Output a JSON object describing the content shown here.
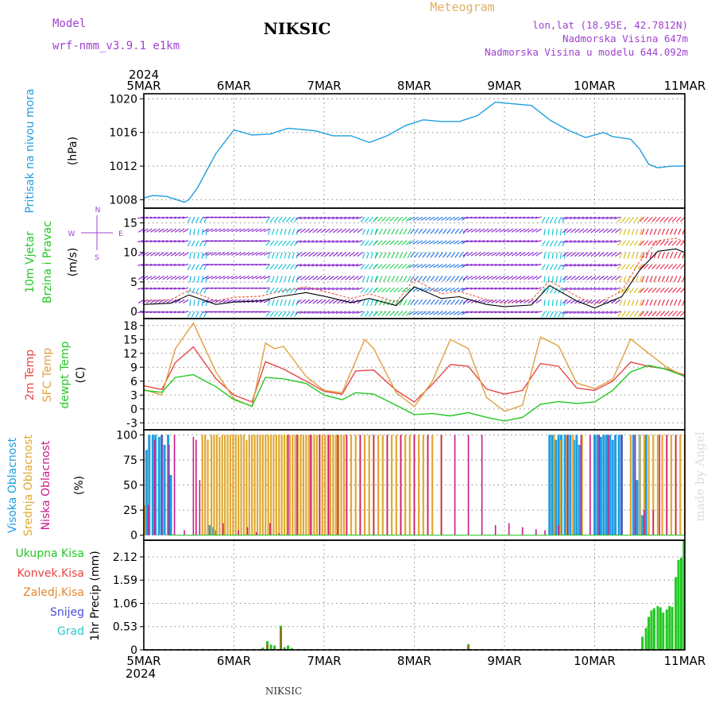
{
  "header": {
    "model_label": "Model",
    "model_name": "wrf-nmm_v3.9.1 e1km",
    "station_title": "NIKSIC",
    "meteogram_label": "Meteogram",
    "coords": "lon,lat (18.95E, 42.7812N)",
    "elevation": "Nadmorska Visina 647m",
    "model_elevation": "Nadmorska Visina u modelu 644.092m",
    "footer_station": "NIKSIC",
    "watermark": "made by Angel"
  },
  "colors": {
    "pressure": "#1f9de0",
    "temp2m": "#e84545",
    "sfc_temp": "#e0a040",
    "dewpt": "#22c822",
    "high_cloud": "#1f9de0",
    "mid_cloud": "#e0a830",
    "low_cloud": "#cc1a88",
    "total_precip": "#22c822",
    "conv_precip": "#e84545",
    "frozen_precip": "#e08830",
    "snow": "#4a4ad8",
    "graupel": "#2ac8c8",
    "header_purple": "#a040d0",
    "header_gold": "#e0b060"
  },
  "chart_data": {
    "type": "meteogram",
    "time_axis": {
      "year": "2024",
      "ticks": [
        "5MAR",
        "6MAR",
        "7MAR",
        "8MAR",
        "9MAR",
        "10MAR",
        "11MAR"
      ],
      "range_days": [
        0,
        6
      ]
    },
    "panels": [
      {
        "id": "pressure",
        "type": "line",
        "title": "Pritisak na nivou mora",
        "ylabel": "(hPa)",
        "ylim": [
          1007,
          1020.6
        ],
        "yticks": [
          1008,
          1012,
          1016,
          1020
        ],
        "series": [
          {
            "name": "Pritisak na nivou mora",
            "x": [
              0,
              0.1,
              0.25,
              0.45,
              0.5,
              0.6,
              0.8,
              1.0,
              1.2,
              1.4,
              1.6,
              1.9,
              2.1,
              2.3,
              2.5,
              2.7,
              2.9,
              3.1,
              3.3,
              3.5,
              3.7,
              3.9,
              4.1,
              4.3,
              4.5,
              4.7,
              4.9,
              5.1,
              5.2,
              5.4,
              5.5,
              5.6,
              5.7,
              5.85,
              6.0
            ],
            "y": [
              1008.2,
              1008.5,
              1008.4,
              1007.7,
              1008.0,
              1009.5,
              1013.5,
              1016.3,
              1015.7,
              1015.8,
              1016.5,
              1016.2,
              1015.6,
              1015.6,
              1014.8,
              1015.6,
              1016.8,
              1017.5,
              1017.3,
              1017.3,
              1018.0,
              1019.6,
              1019.4,
              1019.2,
              1017.5,
              1016.3,
              1015.4,
              1016.0,
              1015.5,
              1015.2,
              1014.0,
              1012.2,
              1011.8,
              1012.0,
              1012.0
            ]
          }
        ]
      },
      {
        "id": "wind",
        "type": "wind-barbs",
        "title": "10m Vjetar",
        "title2": "Brzina i Pravac",
        "ylabel": "(m/s)",
        "compass": [
          "N",
          "W",
          "E",
          "S"
        ],
        "ylim": [
          -1.2,
          17.5
        ],
        "yticks": [
          0,
          5,
          10,
          15
        ],
        "series": [
          {
            "name": "wind-speed",
            "x": [
              0,
              0.3,
              0.5,
              0.8,
              1.0,
              1.3,
              1.5,
              1.8,
              2.0,
              2.3,
              2.5,
              2.8,
              3.0,
              3.3,
              3.5,
              3.8,
              4.0,
              4.3,
              4.5,
              4.8,
              5.0,
              5.3,
              5.5,
              5.7,
              5.9,
              6.0
            ],
            "y": [
              1.2,
              1.4,
              2.8,
              1.2,
              1.6,
              1.8,
              2.5,
              3.2,
              2.6,
              1.5,
              2.2,
              1.0,
              4.2,
              2.2,
              2.5,
              1.2,
              0.8,
              1.1,
              4.4,
              1.8,
              0.6,
              2.5,
              7.0,
              10.2,
              10.6,
              10.0
            ]
          },
          {
            "name": "gust",
            "x": [
              0,
              0.3,
              0.5,
              0.8,
              1.0,
              1.3,
              1.5,
              1.8,
              2.0,
              2.3,
              2.5,
              2.8,
              3.0,
              3.3,
              3.5,
              3.8,
              4.0,
              4.3,
              4.5,
              4.8,
              5.0,
              5.3,
              5.5,
              5.7,
              5.9,
              6.0
            ],
            "y": [
              1.8,
              2.0,
              3.6,
              1.8,
              2.4,
              2.6,
              3.4,
              4.2,
              3.4,
              2.2,
              3.0,
              1.6,
              5.4,
              3.0,
              3.4,
              2.0,
              1.4,
              2.0,
              5.2,
              2.6,
              1.2,
              3.4,
              8.5,
              12.0,
              12.4,
              11.8
            ]
          }
        ]
      },
      {
        "id": "temperature",
        "type": "line",
        "title": "2m Temp",
        "title2": "SFC Temp",
        "title3": "dewpt Temp",
        "ylabel": "(C)",
        "ylim": [
          -4.5,
          19.5
        ],
        "yticks": [
          -3,
          0,
          3,
          6,
          9,
          12,
          15,
          18
        ],
        "series": [
          {
            "name": "2m Temp",
            "x": [
              0,
              0.2,
              0.35,
              0.55,
              0.8,
              1.0,
              1.2,
              1.35,
              1.55,
              1.8,
              2.0,
              2.2,
              2.35,
              2.55,
              2.8,
              3.0,
              3.2,
              3.4,
              3.6,
              3.8,
              4.0,
              4.2,
              4.4,
              4.6,
              4.8,
              5.0,
              5.2,
              5.4,
              5.6,
              5.8,
              6.0
            ],
            "y": [
              5,
              4.2,
              10,
              13.4,
              6.5,
              3.0,
              1.5,
              10.2,
              8.6,
              6.0,
              3.8,
              3.2,
              8.2,
              8.4,
              4.0,
              1.5,
              5.3,
              9.6,
              9.2,
              4.3,
              3.2,
              4.0,
              9.8,
              9.2,
              4.5,
              4.0,
              6.0,
              10.1,
              9.2,
              8.6,
              7.3
            ]
          },
          {
            "name": "SFC Temp",
            "x": [
              0,
              0.2,
              0.35,
              0.55,
              0.8,
              1.0,
              1.2,
              1.35,
              1.45,
              1.55,
              1.8,
              2.0,
              2.2,
              2.45,
              2.55,
              2.8,
              3.0,
              3.2,
              3.4,
              3.6,
              3.8,
              4.0,
              4.2,
              4.4,
              4.6,
              4.8,
              5.0,
              5.2,
              5.4,
              5.6,
              5.8,
              6.0
            ],
            "y": [
              4.2,
              3.0,
              13,
              18.5,
              8.0,
              2.2,
              0.5,
              14.2,
              13.0,
              13.5,
              7.0,
              4.0,
              3.5,
              15.0,
              13.0,
              3.5,
              0.5,
              6.0,
              15.0,
              13.0,
              2.5,
              -0.5,
              0.8,
              15.5,
              13.6,
              5.6,
              4.4,
              6.4,
              15.1,
              12.0,
              9.0,
              7.0
            ]
          },
          {
            "name": "dewpt Temp",
            "x": [
              0,
              0.2,
              0.35,
              0.55,
              0.8,
              1.0,
              1.2,
              1.35,
              1.55,
              1.8,
              2.0,
              2.2,
              2.35,
              2.55,
              2.8,
              3.0,
              3.2,
              3.4,
              3.6,
              3.8,
              4.0,
              4.2,
              4.4,
              4.6,
              4.8,
              5.0,
              5.2,
              5.4,
              5.6,
              5.8,
              6.0
            ],
            "y": [
              4.0,
              3.6,
              6.8,
              7.4,
              4.8,
              2.0,
              0.6,
              6.8,
              6.5,
              5.5,
              3.0,
              2.0,
              3.5,
              3.2,
              0.8,
              -1.2,
              -1.0,
              -1.5,
              -0.8,
              -1.8,
              -2.6,
              -1.8,
              1.0,
              1.6,
              1.2,
              1.5,
              4.0,
              8.0,
              9.4,
              8.5,
              7.0
            ]
          }
        ]
      },
      {
        "id": "clouds",
        "type": "bar",
        "title": "Visoka Oblacnost",
        "title2": "Srednja Oblacnost",
        "title3": "Niska Oblacnost",
        "ylabel": "(%)",
        "ylim": [
          -5,
          105
        ],
        "yticks": [
          0,
          25,
          50,
          75,
          100
        ],
        "series": [
          {
            "name": "Visoka Oblacnost",
            "x": [
              0.03,
              0.06,
              0.1,
              0.13,
              0.17,
              0.2,
              0.23,
              0.27,
              0.3,
              0.73,
              0.77,
              0.8,
              4.5,
              4.53,
              4.57,
              4.6,
              4.63,
              4.67,
              4.7,
              4.73,
              4.77,
              4.8,
              4.83,
              5.0,
              5.03,
              5.07,
              5.1,
              5.13,
              5.17,
              5.2,
              5.23,
              5.27,
              5.3,
              5.43,
              5.47,
              5.5,
              5.53,
              5.57
            ],
            "y": [
              85,
              100,
              100,
              100,
              98,
              100,
              90,
              100,
              60,
              10,
              8,
              5,
              100,
              100,
              95,
              100,
              100,
              100,
              100,
              100,
              95,
              100,
              90,
              100,
              100,
              98,
              100,
              100,
              100,
              95,
              100,
              100,
              100,
              100,
              55,
              100,
              20,
              100
            ]
          },
          {
            "name": "Srednja Oblacnost",
            "x": [
              0.01,
              0.65,
              0.68,
              0.71,
              0.75,
              0.78,
              0.81,
              0.84,
              0.87,
              0.9,
              0.93,
              0.96,
              0.99,
              1.02,
              1.05,
              1.08,
              1.11,
              1.14,
              1.17,
              1.2,
              1.23,
              1.26,
              1.29,
              1.32,
              1.35,
              1.38,
              1.41,
              1.44,
              1.47,
              1.5,
              1.53,
              1.56,
              1.59,
              1.62,
              1.65,
              1.68,
              1.71,
              1.74,
              1.77,
              1.8,
              1.83,
              1.86,
              1.89,
              1.92,
              1.95,
              1.98,
              2.01,
              2.04,
              2.07,
              2.1,
              2.13,
              2.16,
              2.19,
              2.22,
              2.25,
              2.3,
              2.35,
              2.4,
              2.45,
              2.5,
              2.55,
              2.6,
              2.65,
              2.7,
              2.75,
              2.8,
              2.85,
              2.9,
              2.95,
              3.0,
              3.05,
              3.1,
              3.15,
              3.2,
              3.3,
              4.55,
              4.62,
              4.69,
              4.76,
              4.86,
              5.4,
              5.5,
              5.55,
              5.6,
              5.65,
              5.7,
              5.75,
              5.8,
              5.85,
              5.9,
              5.95,
              6.0
            ],
            "y": [
              30,
              100,
              100,
              95,
              100,
              100,
              100,
              98,
              100,
              100,
              100,
              100,
              100,
              100,
              100,
              100,
              100,
              95,
              100,
              100,
              100,
              100,
              100,
              100,
              100,
              100,
              100,
              100,
              100,
              100,
              100,
              100,
              100,
              100,
              100,
              100,
              100,
              100,
              100,
              100,
              100,
              100,
              100,
              100,
              100,
              100,
              100,
              100,
              100,
              100,
              100,
              100,
              100,
              100,
              100,
              100,
              100,
              100,
              100,
              100,
              100,
              100,
              100,
              100,
              100,
              100,
              100,
              100,
              100,
              100,
              100,
              100,
              100,
              100,
              100,
              100,
              95,
              100,
              100,
              100,
              100,
              100,
              100,
              100,
              100,
              100,
              100,
              100,
              100,
              100,
              100,
              100
            ]
          },
          {
            "name": "Niska Oblacnost",
            "x": [
              0.05,
              0.12,
              0.2,
              0.28,
              0.34,
              0.45,
              0.55,
              0.58,
              0.62,
              0.88,
              1.05,
              1.15,
              1.25,
              1.4,
              1.5,
              1.6,
              1.7,
              1.85,
              1.95,
              2.05,
              2.15,
              2.25,
              2.4,
              2.55,
              2.7,
              2.85,
              3.0,
              3.15,
              3.3,
              3.45,
              3.6,
              3.75,
              3.9,
              4.05,
              4.2,
              4.35,
              4.45,
              4.6,
              4.7,
              4.85,
              4.95,
              5.05,
              5.15,
              5.3,
              5.45,
              5.55,
              5.65,
              5.72,
              5.8,
              5.9
            ],
            "y": [
              30,
              95,
              100,
              90,
              100,
              5,
              98,
              95,
              55,
              12,
              5,
              8,
              3,
              12,
              2,
              100,
              100,
              100,
              100,
              100,
              100,
              100,
              100,
              100,
              100,
              100,
              100,
              100,
              100,
              100,
              100,
              100,
              10,
              12,
              8,
              6,
              5,
              10,
              100,
              100,
              100,
              100,
              100,
              100,
              100,
              25,
              25,
              100,
              100,
              100
            ]
          }
        ]
      },
      {
        "id": "precip",
        "type": "bar",
        "title": "Ukupna Kisa",
        "title2": "Konvek.Kisa",
        "title3": "Zaledj.Kisa",
        "title4": "Snijeg",
        "title5": "Grad",
        "ylabel": "1hr Precip (mm)",
        "ylim": [
          0,
          2.5
        ],
        "yticks": [
          0,
          0.53,
          1.06,
          1.59,
          2.12
        ],
        "ytick_labels": [
          "0",
          "0.53",
          "1.06",
          "1.59",
          "2.12"
        ],
        "series": [
          {
            "name": "Ukupna Kisa",
            "x": [
              1.32,
              1.37,
              1.41,
              1.45,
              1.52,
              1.56,
              1.6,
              1.64,
              3.6,
              5.53,
              5.57,
              5.6,
              5.63,
              5.66,
              5.7,
              5.73,
              5.76,
              5.8,
              5.83,
              5.86,
              5.9,
              5.93,
              5.96,
              5.99
            ],
            "y": [
              0.05,
              0.2,
              0.12,
              0.1,
              0.55,
              0.06,
              0.1,
              0.04,
              0.13,
              0.3,
              0.5,
              0.75,
              0.9,
              0.95,
              1.0,
              0.97,
              0.85,
              0.92,
              1.0,
              0.98,
              1.66,
              2.05,
              2.1,
              2.5
            ]
          },
          {
            "name": "Konvek.Kisa",
            "x": [
              1.37,
              1.52,
              3.6
            ],
            "y": [
              0.12,
              0.5,
              0.1
            ]
          }
        ]
      }
    ]
  }
}
